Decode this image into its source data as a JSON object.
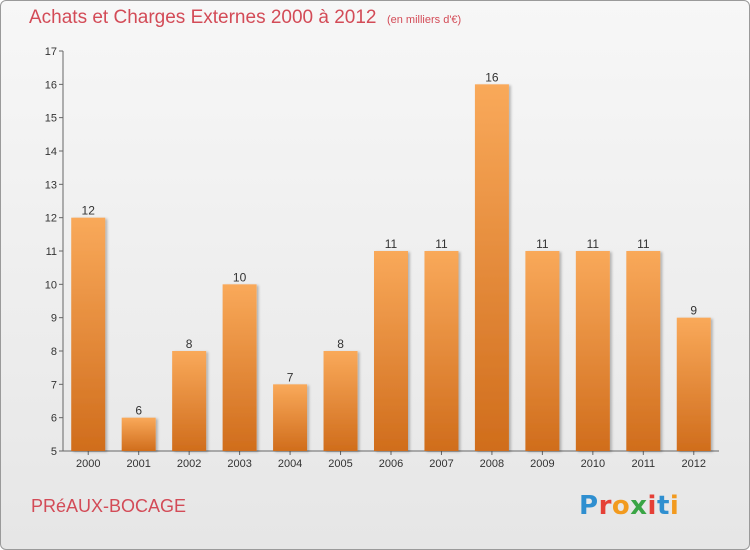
{
  "header": {
    "title": "Achats et Charges Externes 2000 à 2012",
    "unit": "(en milliers d'€)"
  },
  "footer": {
    "commune": "PRéAUX-BOCAGE",
    "logo_text": "Proxiti",
    "logo_colors": [
      "#2f8fd0",
      "#e54036",
      "#f29a1e",
      "#3aa545",
      "#e54036",
      "#2f8fd0",
      "#f29a1e"
    ]
  },
  "colors": {
    "title": "#d34b57",
    "bar_light": "#f9a95a",
    "bar_dark": "#d06d1c"
  },
  "chart_data": {
    "type": "bar",
    "title": "Achats et Charges Externes 2000 à 2012",
    "categories": [
      "2000",
      "2001",
      "2002",
      "2003",
      "2004",
      "2005",
      "2006",
      "2007",
      "2008",
      "2009",
      "2010",
      "2011",
      "2012"
    ],
    "values": [
      12,
      6,
      8,
      10,
      7,
      8,
      11,
      11,
      16,
      11,
      11,
      11,
      9
    ],
    "ylim": [
      5,
      17
    ],
    "yticks": [
      5,
      6,
      7,
      8,
      9,
      10,
      11,
      12,
      13,
      14,
      15,
      16,
      17
    ],
    "grid": false,
    "xlabel": "",
    "ylabel": ""
  }
}
